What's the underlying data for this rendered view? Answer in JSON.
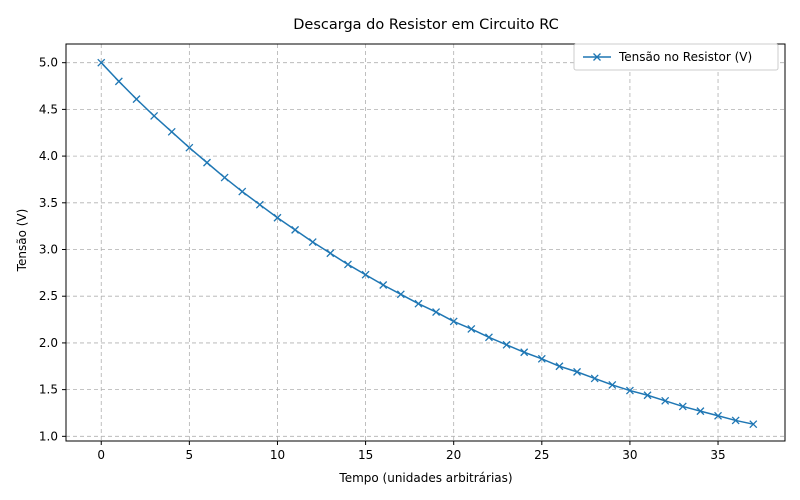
{
  "chart_data": {
    "type": "line",
    "title": "Descarga do Resistor em Circuito RC",
    "xlabel": "Tempo (unidades arbitrárias)",
    "ylabel": "Tensão (V)",
    "xlim": [
      -2,
      38.8
    ],
    "ylim": [
      0.95,
      5.2
    ],
    "xticks": [
      0,
      5,
      10,
      15,
      20,
      25,
      30,
      35
    ],
    "yticks": [
      1.0,
      1.5,
      2.0,
      2.5,
      3.0,
      3.5,
      4.0,
      4.5,
      5.0
    ],
    "grid": true,
    "legend_position": "top-right",
    "series": [
      {
        "name": "Tensão no Resistor (V)",
        "color": "#1f77b4",
        "marker": "x",
        "x": [
          0,
          1,
          2,
          3,
          4,
          5,
          6,
          7,
          8,
          9,
          10,
          11,
          12,
          13,
          14,
          15,
          16,
          17,
          18,
          19,
          20,
          21,
          22,
          23,
          24,
          25,
          26,
          27,
          28,
          29,
          30,
          31,
          32,
          33,
          34,
          35,
          36,
          37
        ],
        "values": [
          5.0,
          4.8,
          4.61,
          4.43,
          4.26,
          4.09,
          3.93,
          3.77,
          3.62,
          3.48,
          3.34,
          3.21,
          3.08,
          2.96,
          2.84,
          2.73,
          2.62,
          2.52,
          2.42,
          2.33,
          2.23,
          2.15,
          2.06,
          1.98,
          1.9,
          1.83,
          1.75,
          1.69,
          1.62,
          1.55,
          1.49,
          1.44,
          1.38,
          1.32,
          1.27,
          1.22,
          1.17,
          1.13
        ]
      }
    ]
  }
}
